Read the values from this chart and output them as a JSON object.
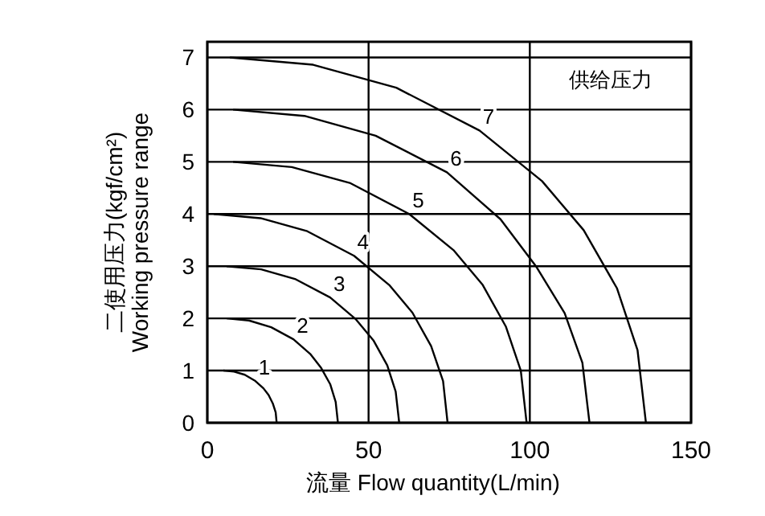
{
  "chart_data": {
    "type": "line",
    "xlabel": "流量 Flow quantity(L/min)",
    "ylabel": "二使用压力(kgf/cm²)\nWorking  pressure range",
    "annotations": [
      "供给压力"
    ],
    "xlim": [
      0,
      150
    ],
    "ylim": [
      0,
      7.3
    ],
    "xticks": [
      0,
      50,
      100,
      150
    ],
    "yticks": [
      0,
      1,
      2,
      3,
      4,
      5,
      6,
      7
    ],
    "grid": true,
    "series": [
      {
        "name": "1",
        "color": "#000000",
        "x": [
          5,
          8.3,
          11.6,
          14.9,
          17.4,
          19.0,
          20.3,
          21.2,
          21.5
        ],
        "values": [
          1,
          0.98,
          0.92,
          0.8,
          0.66,
          0.53,
          0.37,
          0.2,
          0
        ]
      },
      {
        "name": "2",
        "color": "#000000",
        "x": [
          6,
          12.9,
          19.8,
          26.7,
          31.9,
          35.3,
          38.1,
          39.8,
          40.5
        ],
        "values": [
          2,
          1.96,
          1.83,
          1.6,
          1.32,
          1.05,
          0.74,
          0.4,
          0
        ]
      },
      {
        "name": "3",
        "color": "#000000",
        "x": [
          6,
          16.7,
          27.4,
          38.1,
          46.1,
          51.5,
          55.8,
          58.4,
          59.5
        ],
        "values": [
          3,
          2.94,
          2.75,
          2.4,
          1.98,
          1.58,
          1.1,
          0.6,
          0
        ]
      },
      {
        "name": "4",
        "color": "#000000",
        "x": [
          2,
          16.5,
          31,
          45.5,
          56.4,
          63.6,
          69.4,
          73.1,
          74.5
        ],
        "values": [
          4,
          3.92,
          3.67,
          3.2,
          2.64,
          2.11,
          1.47,
          0.8,
          0
        ]
      },
      {
        "name": "5",
        "color": "#000000",
        "x": [
          8,
          26.2,
          44.4,
          62.6,
          76.3,
          85.4,
          92.6,
          97.2,
          99
        ],
        "values": [
          5,
          4.9,
          4.59,
          4,
          3.31,
          2.64,
          1.84,
          1,
          0
        ]
      },
      {
        "name": "6",
        "color": "#000000",
        "x": [
          8,
          30.1,
          52.2,
          74.3,
          90.9,
          101.9,
          110.8,
          116.3,
          118.5
        ],
        "values": [
          6,
          5.88,
          5.5,
          4.8,
          3.9,
          3.0,
          2.1,
          1.15,
          0
        ]
      },
      {
        "name": "7",
        "color": "#000000",
        "x": [
          7,
          32.8,
          58.6,
          84.4,
          103.8,
          116.7,
          127,
          133.4,
          136
        ],
        "values": [
          7,
          6.86,
          6.42,
          5.6,
          4.63,
          3.69,
          2.58,
          1.39,
          0
        ]
      }
    ]
  }
}
